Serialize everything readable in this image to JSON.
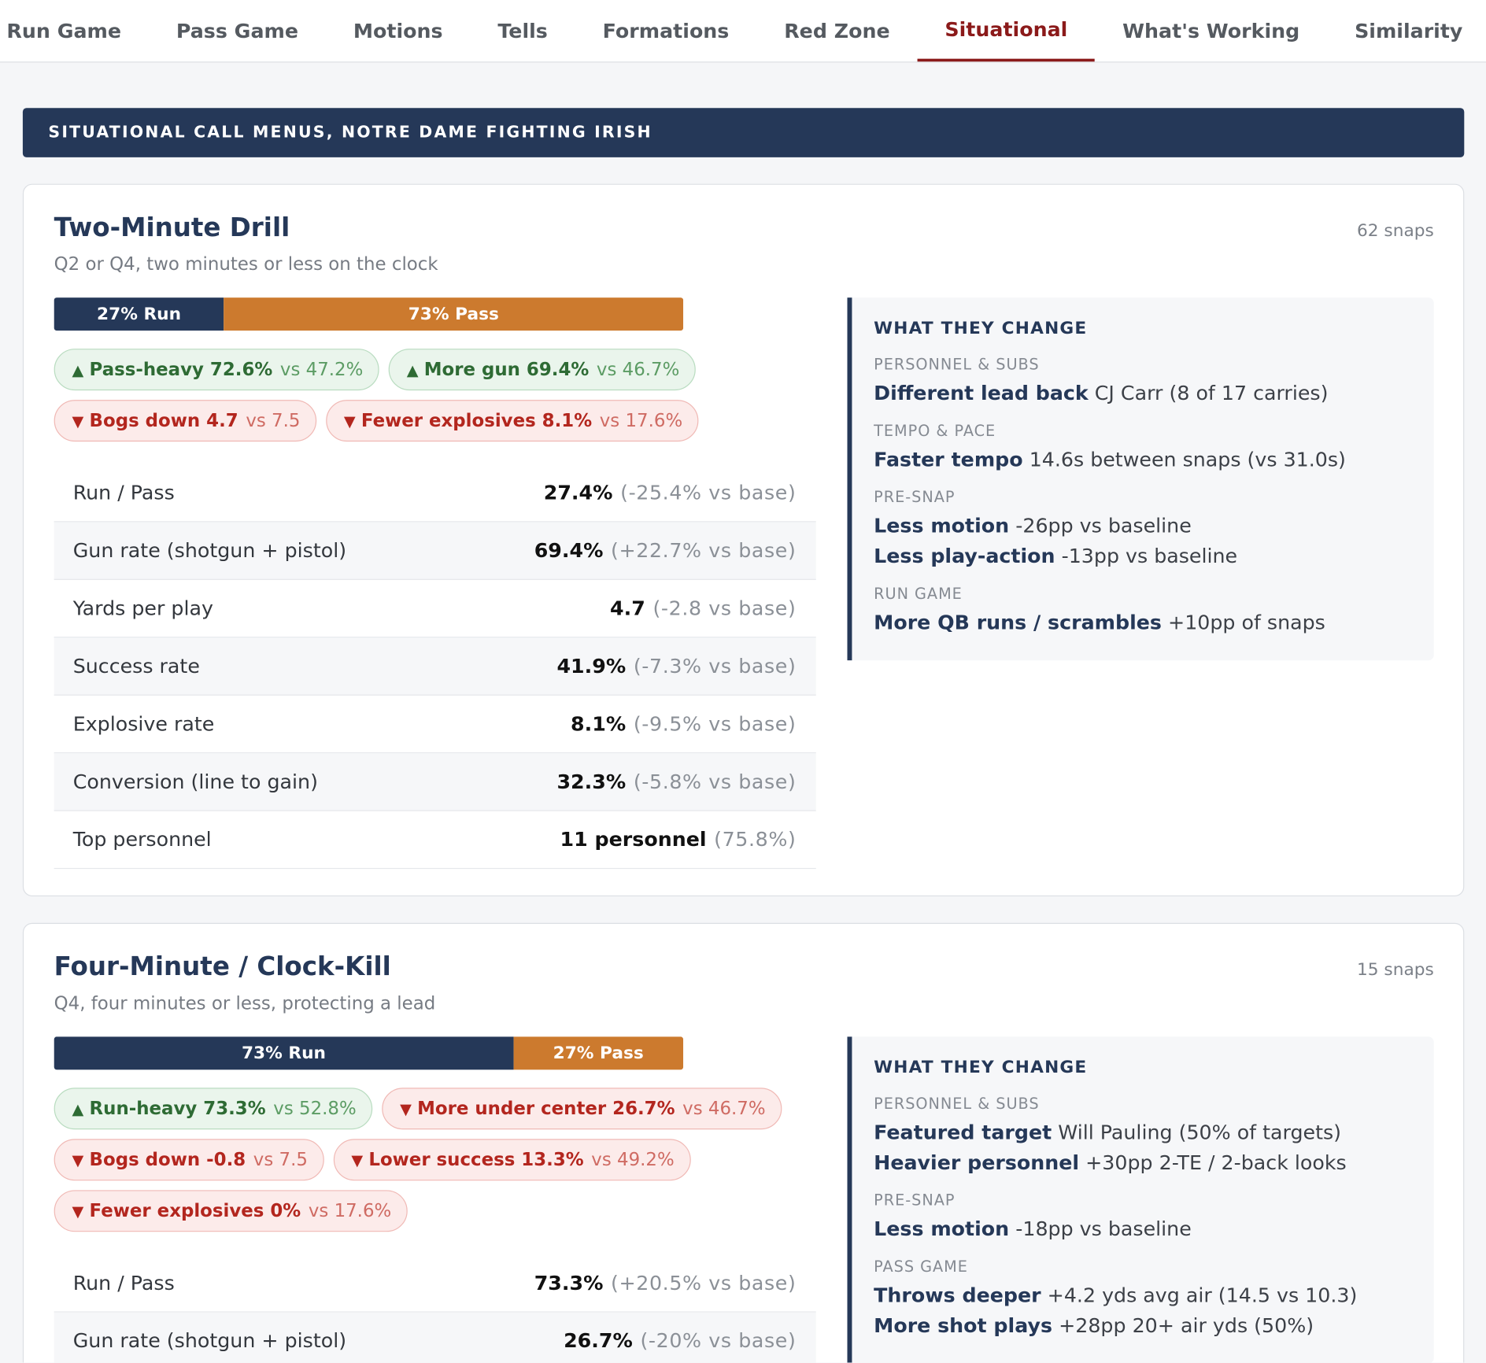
{
  "tabs": [
    "Run Game",
    "Pass Game",
    "Motions",
    "Tells",
    "Formations",
    "Red Zone",
    "Situational",
    "What's Working",
    "Similarity"
  ],
  "active_tab": "Situational",
  "banner": "SITUATIONAL CALL MENUS, NOTRE DAME FIGHTING IRISH",
  "cards": [
    {
      "title": "Two-Minute Drill",
      "snaps": "62 snaps",
      "subtitle": "Q2 or Q4, two minutes or less on the clock",
      "split": {
        "run": {
          "value": 27,
          "label": "27% Run"
        },
        "pass": {
          "value": 73,
          "label": "73% Pass"
        }
      },
      "chips": [
        {
          "direction": "up",
          "text": "Pass-heavy 72.6%",
          "vs": "vs 47.2%"
        },
        {
          "direction": "up",
          "text": "More gun 69.4%",
          "vs": "vs 46.7%"
        },
        {
          "direction": "down",
          "text": "Bogs down 4.7",
          "vs": "vs 7.5"
        },
        {
          "direction": "down",
          "text": "Fewer explosives 8.1%",
          "vs": "vs 17.6%"
        }
      ],
      "stats": [
        {
          "label": "Run / Pass",
          "value": "27.4%",
          "delta": "(-25.4% vs base)"
        },
        {
          "label": "Gun rate (shotgun + pistol)",
          "value": "69.4%",
          "delta": "(+22.7% vs base)"
        },
        {
          "label": "Yards per play",
          "value": "4.7",
          "delta": "(-2.8 vs base)"
        },
        {
          "label": "Success rate",
          "value": "41.9%",
          "delta": "(-7.3% vs base)"
        },
        {
          "label": "Explosive rate",
          "value": "8.1%",
          "delta": "(-9.5% vs base)"
        },
        {
          "label": "Conversion (line to gain)",
          "value": "32.3%",
          "delta": "(-5.8% vs base)"
        },
        {
          "label": "Top personnel",
          "value": "11 personnel",
          "delta": "(75.8%)"
        }
      ],
      "changes": {
        "heading": "WHAT THEY CHANGE",
        "sections": [
          {
            "title": "PERSONNEL & SUBS",
            "items": [
              {
                "bold": "Different lead back",
                "rest": "CJ Carr (8 of 17 carries)"
              }
            ]
          },
          {
            "title": "TEMPO & PACE",
            "items": [
              {
                "bold": "Faster tempo",
                "rest": "14.6s between snaps (vs 31.0s)"
              }
            ]
          },
          {
            "title": "PRE-SNAP",
            "items": [
              {
                "bold": "Less motion",
                "rest": "-26pp vs baseline"
              },
              {
                "bold": "Less play-action",
                "rest": "-13pp vs baseline"
              }
            ]
          },
          {
            "title": "RUN GAME",
            "items": [
              {
                "bold": "More QB runs / scrambles",
                "rest": "+10pp of snaps"
              }
            ]
          }
        ]
      }
    },
    {
      "title": "Four-Minute / Clock-Kill",
      "snaps": "15 snaps",
      "subtitle": "Q4, four minutes or less, protecting a lead",
      "split": {
        "run": {
          "value": 73,
          "label": "73% Run"
        },
        "pass": {
          "value": 27,
          "label": "27% Pass"
        }
      },
      "chips": [
        {
          "direction": "up",
          "text": "Run-heavy 73.3%",
          "vs": "vs 52.8%"
        },
        {
          "direction": "down",
          "text": "More under center 26.7%",
          "vs": "vs 46.7%"
        },
        {
          "direction": "down",
          "text": "Bogs down -0.8",
          "vs": "vs 7.5"
        },
        {
          "direction": "down",
          "text": "Lower success 13.3%",
          "vs": "vs 49.2%"
        },
        {
          "direction": "down",
          "text": "Fewer explosives 0%",
          "vs": "vs 17.6%"
        }
      ],
      "stats": [
        {
          "label": "Run / Pass",
          "value": "73.3%",
          "delta": "(+20.5% vs base)"
        },
        {
          "label": "Gun rate (shotgun + pistol)",
          "value": "26.7%",
          "delta": "(-20% vs base)"
        }
      ],
      "changes": {
        "heading": "WHAT THEY CHANGE",
        "sections": [
          {
            "title": "PERSONNEL & SUBS",
            "items": [
              {
                "bold": "Featured target",
                "rest": "Will Pauling (50% of targets)"
              },
              {
                "bold": "Heavier personnel",
                "rest": "+30pp 2-TE / 2-back looks"
              }
            ]
          },
          {
            "title": "PRE-SNAP",
            "items": [
              {
                "bold": "Less motion",
                "rest": "-18pp vs baseline"
              }
            ]
          },
          {
            "title": "PASS GAME",
            "items": [
              {
                "bold": "Throws deeper",
                "rest": "+4.2 yds avg air (14.5 vs 10.3)"
              },
              {
                "bold": "More shot plays",
                "rest": "+28pp 20+ air yds (50%)"
              }
            ]
          }
        ]
      }
    }
  ]
}
